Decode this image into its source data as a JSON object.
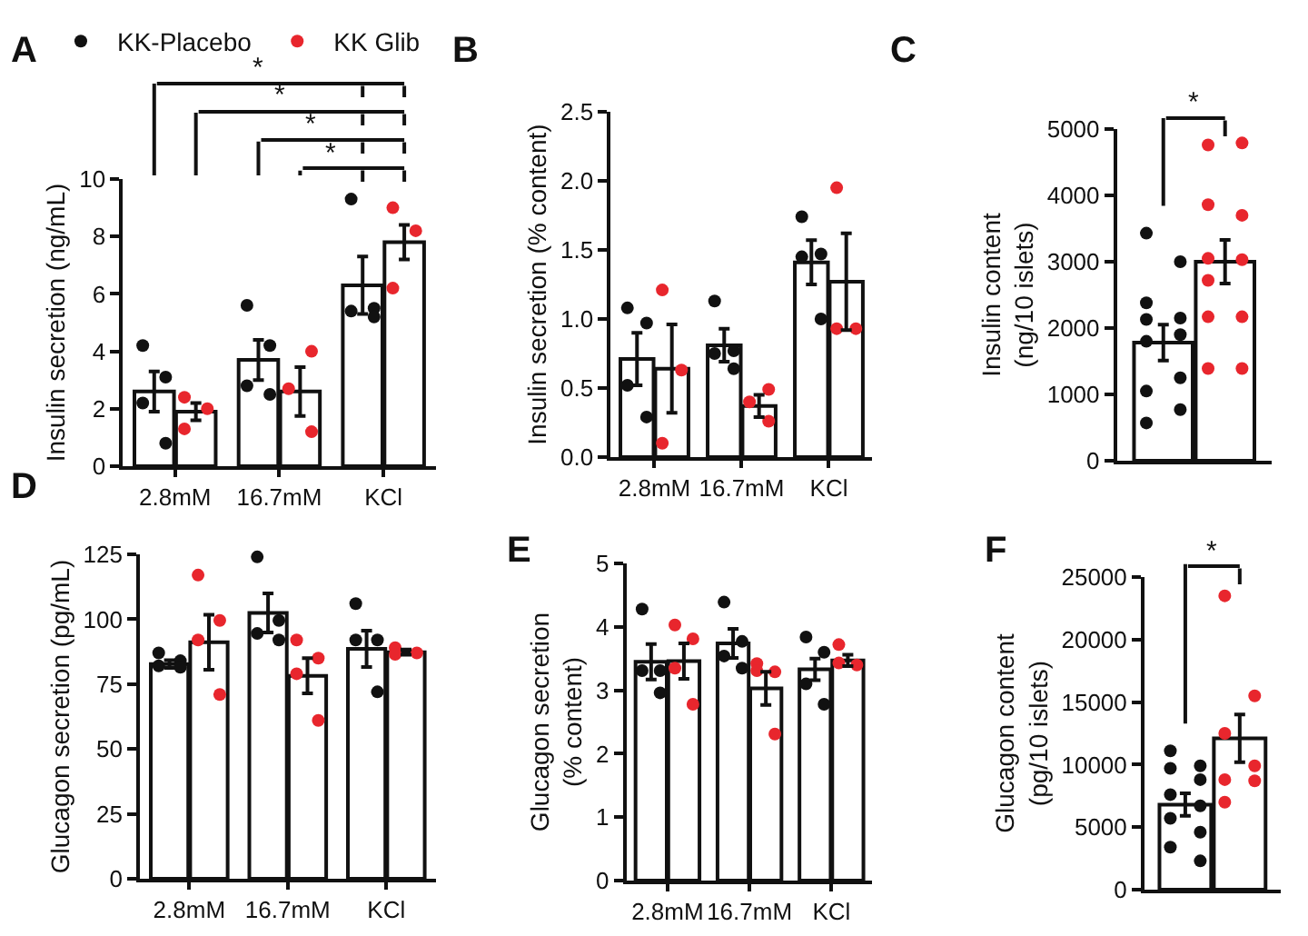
{
  "chart_data": [
    {
      "type": "bar",
      "title": "A",
      "ylabel": "Insulin secretion (ng/mL)",
      "categories": [
        "2.8mM",
        "16.7mM",
        "KCl"
      ],
      "ylim": [
        0,
        10
      ],
      "yticks": [
        0,
        2,
        4,
        6,
        8,
        10
      ],
      "legend": "top",
      "marker": "circle",
      "annotations": [
        "*",
        "*",
        "*",
        "*"
      ],
      "series": [
        {
          "color": "#ffffff",
          "values": [
            2.6,
            3.7,
            6.3
          ],
          "errors": [
            0.7,
            0.7,
            1.0
          ]
        },
        {
          "color": "#ffffff",
          "values": [
            1.9,
            2.6,
            7.8
          ],
          "errors": [
            0.3,
            0.85,
            0.6
          ]
        },
        {
          "type": "scatter",
          "name": "KK-Placebo",
          "color": "#111111",
          "x": [
            "2.8mM",
            "2.8mM",
            "2.8mM",
            "2.8mM",
            "16.7mM",
            "16.7mM",
            "16.7mM",
            "16.7mM",
            "KCl",
            "KCl",
            "KCl",
            "KCl"
          ],
          "values": [
            4.2,
            3.1,
            2.2,
            0.8,
            5.6,
            4.2,
            2.8,
            2.5,
            9.3,
            5.5,
            5.4,
            5.2
          ]
        },
        {
          "type": "scatter",
          "name": "KK Glib",
          "color": "#e8262d",
          "x": [
            "2.8mM",
            "2.8mM",
            "2.8mM",
            "16.7mM",
            "16.7mM",
            "16.7mM",
            "KCl",
            "KCl",
            "KCl"
          ],
          "values": [
            2.4,
            2.0,
            1.3,
            4.0,
            2.7,
            1.2,
            9.0,
            8.2,
            6.2
          ]
        }
      ]
    },
    {
      "type": "bar",
      "title": "B",
      "ylabel": "Insulin secretion (% content)",
      "categories": [
        "2.8mM",
        "16.7mM",
        "KCl"
      ],
      "ylim": [
        0,
        2.5
      ],
      "yticks": [
        {
          "value": 0,
          "label": "0.0"
        },
        {
          "value": 0.5,
          "label": "0.5"
        },
        {
          "value": 1,
          "label": "1.0"
        },
        {
          "value": 1.5,
          "label": "1.5"
        },
        {
          "value": 2,
          "label": "2.0"
        },
        {
          "value": 2.5,
          "label": "2.5"
        }
      ],
      "marker": "circle",
      "series": [
        {
          "color": "#ffffff",
          "values": [
            0.71,
            0.81,
            1.41
          ],
          "errors": [
            0.19,
            0.12,
            0.16
          ]
        },
        {
          "color": "#ffffff",
          "values": [
            0.64,
            0.37,
            1.27
          ],
          "errors": [
            0.32,
            0.08,
            0.35
          ]
        },
        {
          "type": "scatter",
          "color": "#111111",
          "x": [
            "2.8mM",
            "2.8mM",
            "2.8mM",
            "2.8mM",
            "16.7mM",
            "16.7mM",
            "16.7mM",
            "16.7mM",
            "KCl",
            "KCl",
            "KCl",
            "KCl"
          ],
          "values": [
            1.08,
            0.97,
            0.52,
            0.29,
            1.13,
            0.77,
            0.75,
            0.64,
            1.74,
            1.47,
            1.45,
            1.0
          ]
        },
        {
          "type": "scatter",
          "color": "#e8262d",
          "x": [
            "2.8mM",
            "2.8mM",
            "2.8mM",
            "16.7mM",
            "16.7mM",
            "16.7mM",
            "KCl",
            "KCl",
            "KCl"
          ],
          "values": [
            1.21,
            0.63,
            0.1,
            0.49,
            0.4,
            0.26,
            1.95,
            0.93,
            0.93
          ]
        }
      ]
    },
    {
      "type": "bar",
      "title": "C",
      "ylabel": "Insulin content\n(ng/10 islets)",
      "categories": [
        null
      ],
      "ylim": [
        0,
        5000
      ],
      "yticks": [
        0,
        1000,
        2000,
        3000,
        4000,
        5000
      ],
      "marker": "circle",
      "annotations": [
        "*"
      ],
      "series": [
        {
          "color": "#ffffff",
          "values": [
            1780
          ],
          "errors": [
            270
          ]
        },
        {
          "color": "#ffffff",
          "values": [
            3000
          ],
          "errors": [
            330
          ]
        },
        {
          "type": "scatter",
          "color": "#111111",
          "x": [
            null,
            null,
            null,
            null,
            null,
            null,
            null,
            null,
            null,
            null,
            null
          ],
          "values": [
            3430,
            3000,
            2380,
            2150,
            2130,
            1900,
            1800,
            1250,
            1050,
            770,
            570
          ]
        },
        {
          "type": "scatter",
          "color": "#e8262d",
          "x": [
            null,
            null,
            null,
            null,
            null,
            null,
            null,
            null,
            null,
            null,
            null
          ],
          "values": [
            4760,
            4790,
            3860,
            3700,
            3050,
            3030,
            2720,
            2170,
            2170,
            1390,
            1390
          ]
        }
      ]
    },
    {
      "type": "bar",
      "title": "D",
      "ylabel": "Glucagon secretion (pg/mL)",
      "categories": [
        "2.8mM",
        "16.7mM",
        "KCl"
      ],
      "ylim": [
        0,
        125
      ],
      "yticks": [
        0,
        25,
        50,
        75,
        100,
        125
      ],
      "marker": "circle",
      "series": [
        {
          "color": "#ffffff",
          "values": [
            82.7,
            102.4,
            88.6
          ],
          "errors": [
            1.5,
            7.5,
            7
          ]
        },
        {
          "color": "#ffffff",
          "values": [
            91.1,
            78.2,
            87.3
          ],
          "errors": [
            10.6,
            6.8,
            1
          ]
        },
        {
          "type": "scatter",
          "color": "#111111",
          "x": [
            "2.8mM",
            "2.8mM",
            "2.8mM",
            "2.8mM",
            "16.7mM",
            "16.7mM",
            "16.7mM",
            "16.7mM",
            "KCl",
            "KCl",
            "KCl",
            "KCl"
          ],
          "values": [
            87,
            84,
            82,
            81.5,
            124,
            99.5,
            94.5,
            92,
            106,
            92,
            92,
            72
          ]
        },
        {
          "type": "scatter",
          "color": "#e8262d",
          "x": [
            "2.8mM",
            "2.8mM",
            "2.8mM",
            "2.8mM",
            "16.7mM",
            "16.7mM",
            "16.7mM",
            "16.7mM",
            "KCl",
            "KCl",
            "KCl"
          ],
          "values": [
            117,
            99.5,
            92,
            71,
            92,
            85,
            79,
            61,
            89,
            87,
            86.5
          ]
        }
      ]
    },
    {
      "type": "bar",
      "title": "E",
      "ylabel": "Glucagon secretion\n(% content)",
      "categories": [
        "2.8mM",
        "16.7mM",
        "KCl"
      ],
      "ylim": [
        0,
        5
      ],
      "yticks": [
        0,
        1,
        2,
        3,
        4,
        5
      ],
      "marker": "circle",
      "series": [
        {
          "color": "#ffffff",
          "values": [
            3.45,
            3.74,
            3.33
          ],
          "errors": [
            0.28,
            0.23,
            0.17
          ]
        },
        {
          "color": "#ffffff",
          "values": [
            3.46,
            3.03,
            3.47
          ],
          "errors": [
            0.28,
            0.26,
            0.09
          ]
        },
        {
          "type": "scatter",
          "color": "#111111",
          "x": [
            "2.8mM",
            "2.8mM",
            "2.8mM",
            "2.8mM",
            "16.7mM",
            "16.7mM",
            "16.7mM",
            "16.7mM",
            "KCl",
            "KCl",
            "KCl",
            "KCl"
          ],
          "values": [
            4.28,
            3.31,
            3.31,
            2.96,
            4.39,
            3.77,
            3.54,
            3.35,
            3.84,
            3.6,
            3.1,
            2.78
          ]
        },
        {
          "type": "scatter",
          "color": "#e8262d",
          "x": [
            "2.8mM",
            "2.8mM",
            "2.8mM",
            "2.8mM",
            "16.7mM",
            "16.7mM",
            "16.7mM",
            "16.7mM",
            "KCl",
            "KCl",
            "KCl"
          ],
          "values": [
            4.03,
            3.81,
            3.35,
            2.78,
            3.42,
            3.29,
            3.31,
            2.31,
            3.72,
            3.4,
            3.43
          ]
        }
      ]
    },
    {
      "type": "bar",
      "title": "F",
      "ylabel": "Glucagon content\n(pg/10 islets)",
      "categories": [
        null
      ],
      "ylim": [
        0,
        25000
      ],
      "yticks": [
        0,
        5000,
        10000,
        15000,
        20000,
        25000
      ],
      "marker": "circle",
      "annotations": [
        "*"
      ],
      "series": [
        {
          "color": "#ffffff",
          "values": [
            6800
          ],
          "errors": [
            900
          ]
        },
        {
          "color": "#ffffff",
          "values": [
            12100
          ],
          "errors": [
            1900
          ]
        },
        {
          "type": "scatter",
          "color": "#111111",
          "x": [
            null,
            null,
            null,
            null,
            null,
            null,
            null,
            null,
            null,
            null
          ],
          "values": [
            11100,
            9900,
            9700,
            8800,
            7600,
            6700,
            5700,
            4600,
            3400,
            2300
          ]
        },
        {
          "type": "scatter",
          "color": "#e8262d",
          "x": [
            null,
            null,
            null,
            null,
            null,
            null,
            null
          ],
          "values": [
            23500,
            15500,
            12500,
            9900,
            8800,
            8700,
            7000
          ]
        }
      ]
    }
  ]
}
